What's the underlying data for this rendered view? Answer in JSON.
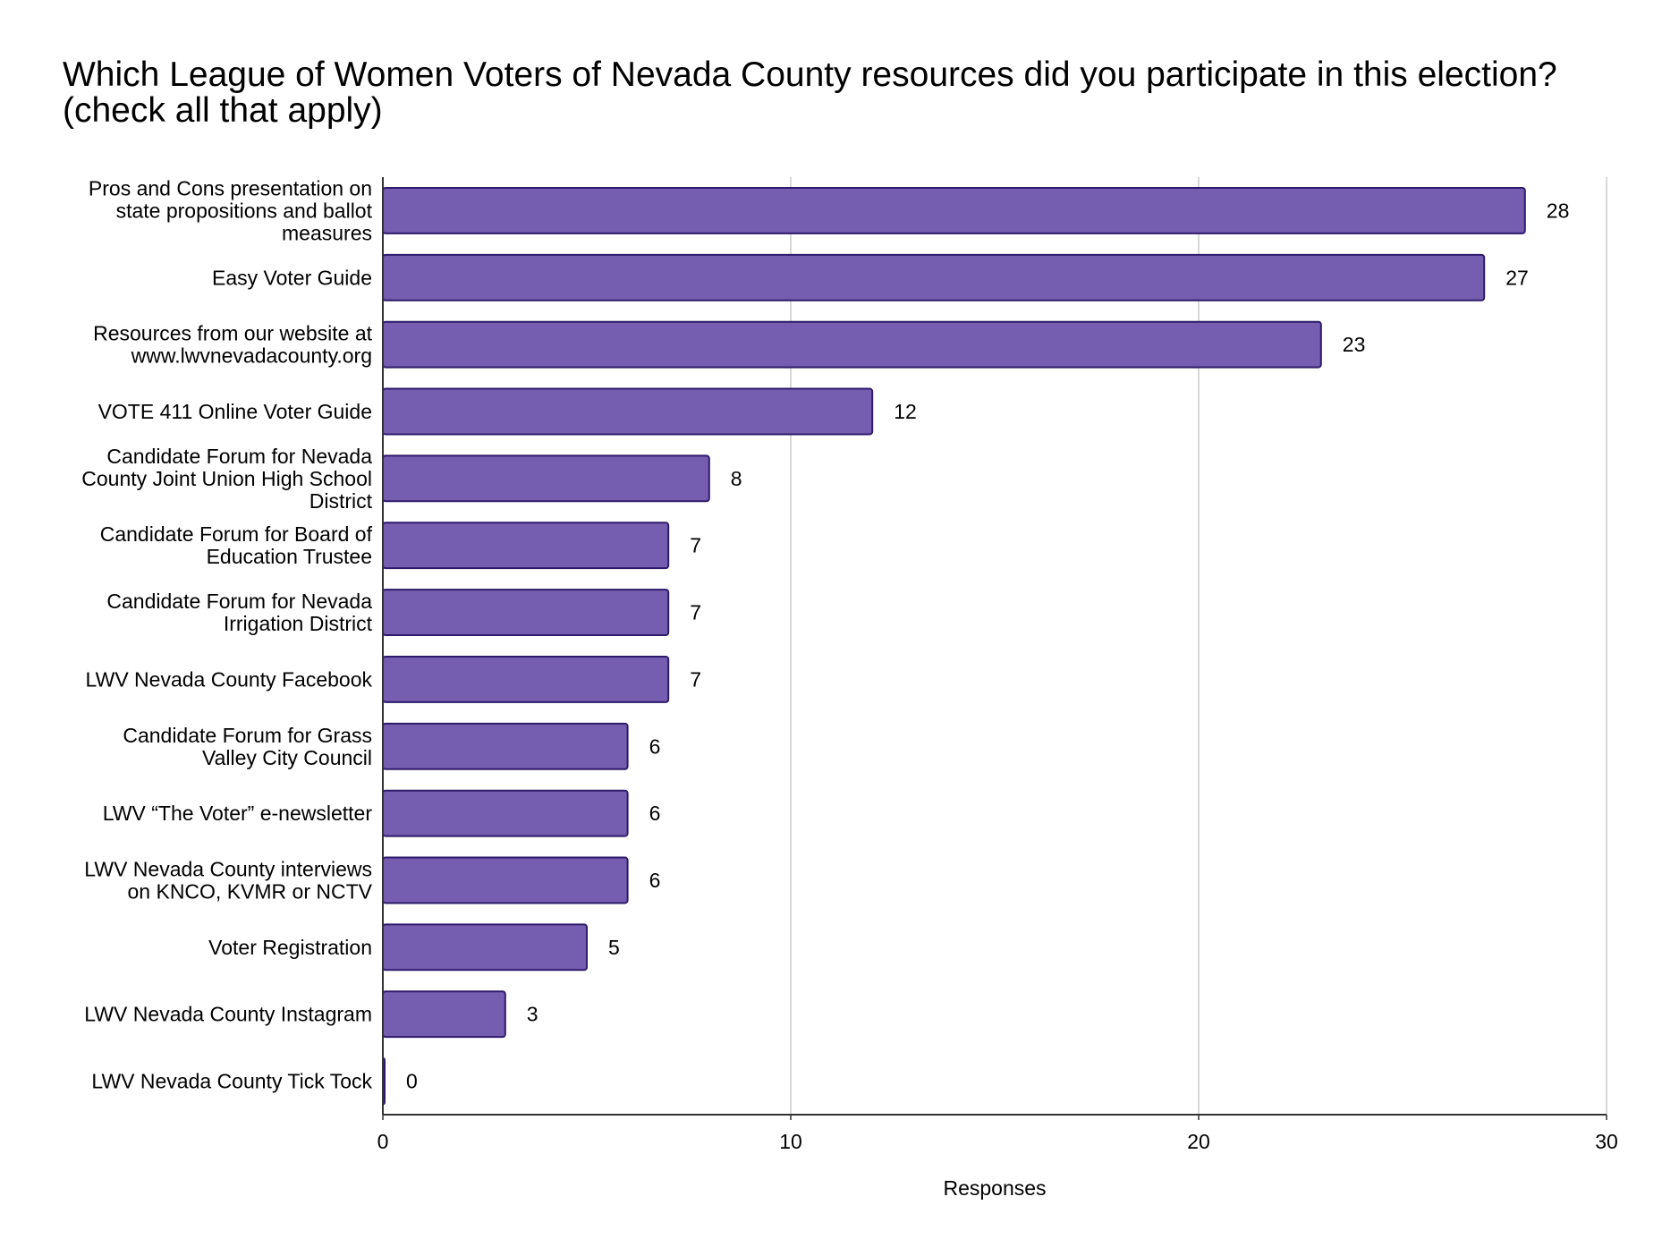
{
  "chart_data": {
    "type": "bar",
    "orientation": "horizontal",
    "title": "Which League of Women Voters of Nevada County resources did you participate in this election? (check all that apply)",
    "xlabel": "Responses",
    "ylabel": "",
    "xlim": [
      0,
      30
    ],
    "xticks": [
      0,
      10,
      20,
      30
    ],
    "grid": true,
    "legend": "none",
    "bar_color": "#755EAF",
    "bar_edge_color": "#2E1A6B",
    "categories": [
      [
        "Pros and Cons presentation on",
        "state propositions and ballot",
        "measures"
      ],
      [
        "Easy Voter Guide"
      ],
      [
        "Resources from our website at",
        "www.lwvnevadacounty.org"
      ],
      [
        "VOTE 411 Online Voter Guide"
      ],
      [
        "Candidate Forum for Nevada",
        "County Joint Union High School",
        "District"
      ],
      [
        "Candidate Forum for Board of",
        "Education Trustee"
      ],
      [
        "Candidate Forum for Nevada",
        "Irrigation District"
      ],
      [
        "LWV Nevada County Facebook"
      ],
      [
        "Candidate Forum for Grass",
        "Valley City Council"
      ],
      [
        "LWV “The Voter” e-newsletter"
      ],
      [
        "LWV Nevada County interviews",
        "on KNCO, KVMR or NCTV"
      ],
      [
        "Voter Registration"
      ],
      [
        "LWV Nevada County Instagram"
      ],
      [
        "LWV Nevada County Tick Tock"
      ]
    ],
    "values": [
      28,
      27,
      23,
      12,
      8,
      7,
      7,
      7,
      6,
      6,
      6,
      5,
      3,
      0
    ]
  }
}
